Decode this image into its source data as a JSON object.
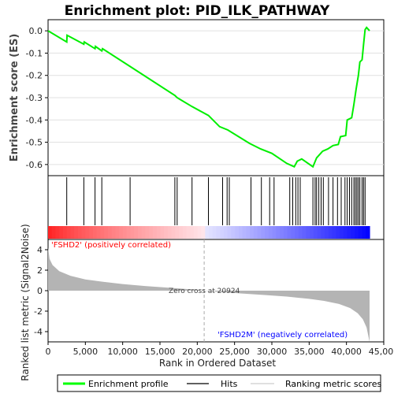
{
  "chart_data": {
    "type": "line",
    "title": "Enrichment plot: PID_ILK_PATHWAY",
    "top_panel": {
      "ylabel": "Enrichment score (ES)",
      "ylim": [
        -0.65,
        0.05
      ],
      "yticks": [
        0.0,
        -0.1,
        -0.2,
        -0.3,
        -0.4,
        -0.5,
        -0.6
      ],
      "ytick_labels": [
        "0.0",
        "-0.1",
        "-0.2",
        "-0.3",
        "-0.4",
        "-0.5",
        "-0.6"
      ],
      "series_name": "Enrichment profile",
      "es_curve": [
        [
          0,
          0.0
        ],
        [
          2500,
          -0.05
        ],
        [
          2550,
          -0.02
        ],
        [
          4800,
          -0.06
        ],
        [
          4850,
          -0.05
        ],
        [
          6300,
          -0.08
        ],
        [
          6350,
          -0.07
        ],
        [
          7200,
          -0.09
        ],
        [
          7300,
          -0.08
        ],
        [
          11000,
          -0.16
        ],
        [
          17000,
          -0.29
        ],
        [
          17300,
          -0.3
        ],
        [
          19300,
          -0.34
        ],
        [
          21500,
          -0.38
        ],
        [
          23000,
          -0.43
        ],
        [
          24100,
          -0.445
        ],
        [
          27000,
          -0.505
        ],
        [
          28500,
          -0.53
        ],
        [
          30000,
          -0.55
        ],
        [
          32000,
          -0.595
        ],
        [
          33000,
          -0.61
        ],
        [
          33400,
          -0.585
        ],
        [
          34000,
          -0.575
        ],
        [
          35500,
          -0.61
        ],
        [
          36000,
          -0.57
        ],
        [
          36800,
          -0.54
        ],
        [
          37500,
          -0.53
        ],
        [
          38200,
          -0.515
        ],
        [
          38900,
          -0.51
        ],
        [
          39200,
          -0.475
        ],
        [
          39900,
          -0.47
        ],
        [
          40100,
          -0.4
        ],
        [
          40700,
          -0.39
        ],
        [
          41000,
          -0.33
        ],
        [
          41300,
          -0.26
        ],
        [
          41600,
          -0.2
        ],
        [
          41800,
          -0.14
        ],
        [
          42100,
          -0.13
        ],
        [
          42300,
          -0.06
        ],
        [
          42500,
          0.005
        ],
        [
          42700,
          0.015
        ],
        [
          43100,
          0.0
        ]
      ],
      "hits": [
        2500,
        4800,
        6300,
        7200,
        11000,
        17000,
        17300,
        19300,
        21500,
        23400,
        24000,
        24300,
        27200,
        28600,
        29700,
        30300,
        32400,
        32800,
        33200,
        33500,
        33800,
        35500,
        35800,
        36000,
        36300,
        36600,
        36900,
        37600,
        38200,
        38800,
        39300,
        39800,
        40100,
        40400,
        40700,
        41000,
        41200,
        41400,
        41600,
        41800,
        42100,
        42300,
        42500
      ]
    },
    "bottom_panel": {
      "ylabel": "Ranked list metric (Signal2Noise)",
      "xlabel": "Rank in Ordered Dataset",
      "xlim": [
        0,
        45000
      ],
      "xticks": [
        0,
        5000,
        10000,
        15000,
        20000,
        25000,
        30000,
        35000,
        40000,
        45000
      ],
      "xtick_labels": [
        "0",
        "5,000",
        "10,000",
        "15,000",
        "20,000",
        "25,000",
        "30,000",
        "35,000",
        "40,000",
        "45,000"
      ],
      "ylim": [
        -5,
        5
      ],
      "yticks": [
        4,
        2,
        0,
        -2,
        -4
      ],
      "ytick_labels": [
        "4",
        "2",
        "0",
        "-2",
        "-4"
      ],
      "metric_curve": [
        [
          0,
          4.2
        ],
        [
          200,
          3.1
        ],
        [
          600,
          2.5
        ],
        [
          1500,
          1.9
        ],
        [
          3000,
          1.45
        ],
        [
          5000,
          1.1
        ],
        [
          7500,
          0.85
        ],
        [
          10000,
          0.65
        ],
        [
          13000,
          0.45
        ],
        [
          16000,
          0.3
        ],
        [
          19000,
          0.14
        ],
        [
          20924,
          0.0
        ],
        [
          23000,
          -0.12
        ],
        [
          26000,
          -0.28
        ],
        [
          29000,
          -0.42
        ],
        [
          32000,
          -0.58
        ],
        [
          35000,
          -0.8
        ],
        [
          37000,
          -1.0
        ],
        [
          39000,
          -1.3
        ],
        [
          40500,
          -1.7
        ],
        [
          41500,
          -2.2
        ],
        [
          42200,
          -2.8
        ],
        [
          42700,
          -3.6
        ],
        [
          43100,
          -5.0
        ]
      ],
      "zero_cross_rank": 20924,
      "zero_cross_label": "Zero cross at 20924",
      "positive_label": "'FSHD2' (positively correlated)",
      "negative_label": "'FSHD2M' (negatively correlated)",
      "positive_color": "#ff0000",
      "negative_color": "#0000ff"
    },
    "legend": {
      "position": "bottom",
      "entries": [
        {
          "label": "Enrichment profile",
          "color": "#00ff00"
        },
        {
          "label": "Hits",
          "color": "#000000"
        },
        {
          "label": "Ranking metric scores",
          "color": "#c0c0c0"
        }
      ]
    }
  }
}
